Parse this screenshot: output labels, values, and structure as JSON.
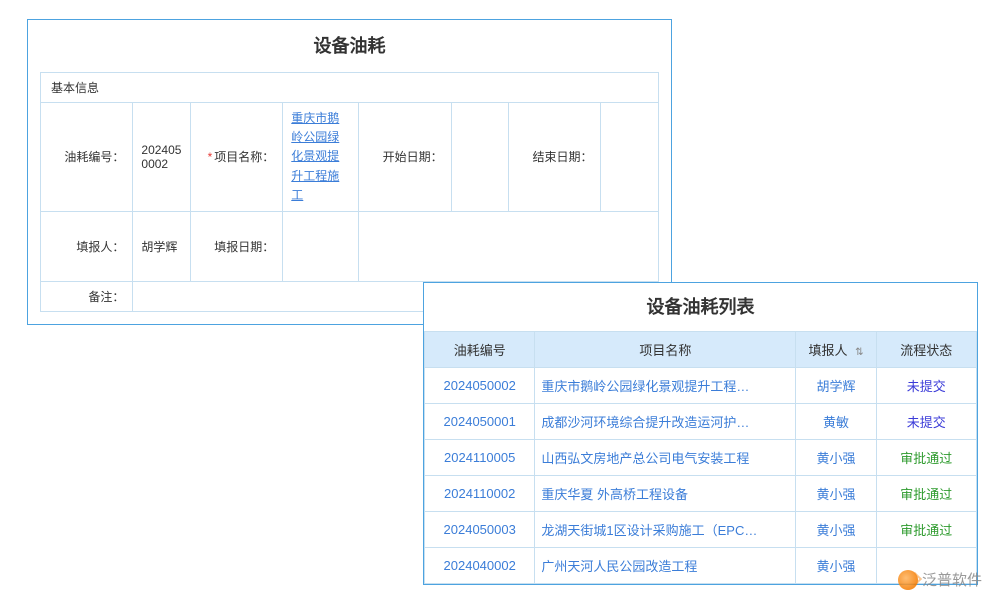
{
  "form": {
    "title": "设备油耗",
    "section_title": "基本信息",
    "labels": {
      "code": "油耗编号：",
      "project": "项目名称：",
      "start_date": "开始日期：",
      "end_date": "结束日期：",
      "reporter": "填报人：",
      "report_date": "填报日期：",
      "remark": "备注："
    },
    "values": {
      "code": "2024050002",
      "project": "重庆市鹅岭公园绿化景观提升工程施工",
      "start_date": "",
      "end_date": "",
      "reporter": "胡学辉",
      "report_date": "",
      "remark": ""
    },
    "required_star": "*"
  },
  "list": {
    "title": "设备油耗列表",
    "columns": {
      "code": "油耗编号",
      "project": "项目名称",
      "reporter": "填报人",
      "status": "流程状态"
    },
    "rows": [
      {
        "code": "2024050002",
        "project": "重庆市鹅岭公园绿化景观提升工程…",
        "reporter": "胡学辉",
        "status": "未提交",
        "status_class": "status-unsubmitted"
      },
      {
        "code": "2024050001",
        "project": "成都沙河环境综合提升改造运河护…",
        "reporter": "黄敏",
        "status": "未提交",
        "status_class": "status-unsubmitted"
      },
      {
        "code": "2024110005",
        "project": "山西弘文房地产总公司电气安装工程",
        "reporter": "黄小强",
        "status": "审批通过",
        "status_class": "status-approved"
      },
      {
        "code": "2024110002",
        "project": "重庆华夏 外高桥工程设备",
        "reporter": "黄小强",
        "status": "审批通过",
        "status_class": "status-approved"
      },
      {
        "code": "2024050003",
        "project": "龙湖天街城1区设计采购施工（EPC…",
        "reporter": "黄小强",
        "status": "审批通过",
        "status_class": "status-approved"
      },
      {
        "code": "2024040002",
        "project": "广州天河人民公园改造工程",
        "reporter": "黄小强",
        "status": "",
        "status_class": ""
      }
    ],
    "col_widths": {
      "code": "110",
      "project": "260",
      "reporter": "80",
      "status": "100"
    },
    "sort_glyph": "⇅"
  },
  "watermark": {
    "text": "泛普软件"
  },
  "colors": {
    "panel_border": "#4da3e0",
    "cell_border": "#c7dff0",
    "link": "#3b7dd8",
    "header_bg": "#d6eafb",
    "status_unsubmitted": "#3b3bd8",
    "status_approved": "#2e9b2e"
  }
}
